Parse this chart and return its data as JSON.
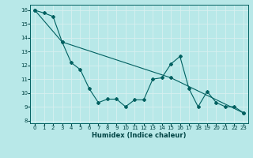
{
  "xlabel": "Humidex (Indice chaleur)",
  "ylabel": "",
  "xlim": [
    -0.5,
    23.5
  ],
  "ylim": [
    7.8,
    16.4
  ],
  "yticks": [
    8,
    9,
    10,
    11,
    12,
    13,
    14,
    15,
    16
  ],
  "xticks": [
    0,
    1,
    2,
    3,
    4,
    5,
    6,
    7,
    8,
    9,
    10,
    11,
    12,
    13,
    14,
    15,
    16,
    17,
    18,
    19,
    20,
    21,
    22,
    23
  ],
  "bg_color": "#b8e8e8",
  "grid_color": "#d8f0f0",
  "line_color": "#006060",
  "line1_x": [
    0,
    1,
    2,
    3,
    4,
    5,
    6,
    7,
    8,
    9,
    10,
    11,
    12,
    13,
    14,
    15,
    16,
    17,
    18,
    19,
    20,
    21,
    22,
    23
  ],
  "line1_y": [
    16.0,
    15.8,
    15.55,
    13.7,
    12.2,
    11.7,
    10.3,
    9.3,
    9.55,
    9.55,
    9.0,
    9.5,
    9.5,
    11.0,
    11.1,
    12.1,
    12.65,
    10.3,
    9.0,
    10.1,
    9.3,
    9.0,
    9.0,
    8.55
  ],
  "line2_x": [
    0,
    3,
    15,
    23
  ],
  "line2_y": [
    16.0,
    13.7,
    11.1,
    8.55
  ],
  "tick_fontsize": 5.0,
  "xlabel_fontsize": 6.0,
  "marker_size": 2.0,
  "linewidth": 0.8
}
